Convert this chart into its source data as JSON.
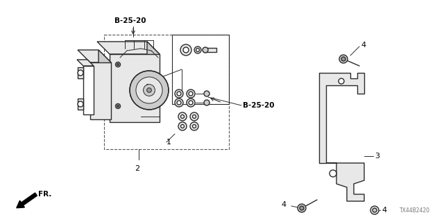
{
  "bg_color": "#ffffff",
  "title_code": "TX44B2420",
  "labels": {
    "bolt": "B-25-20",
    "fr": "FR.",
    "p1": "1",
    "p2": "2",
    "p3": "3",
    "p4": "4"
  },
  "colors": {
    "line": "#2a2a2a",
    "dashed": "#555555",
    "fill_light": "#e8e8e8",
    "fill_mid": "#cccccc",
    "fill_dark": "#999999",
    "white": "#ffffff"
  },
  "fig_width": 6.4,
  "fig_height": 3.2,
  "dpi": 100
}
